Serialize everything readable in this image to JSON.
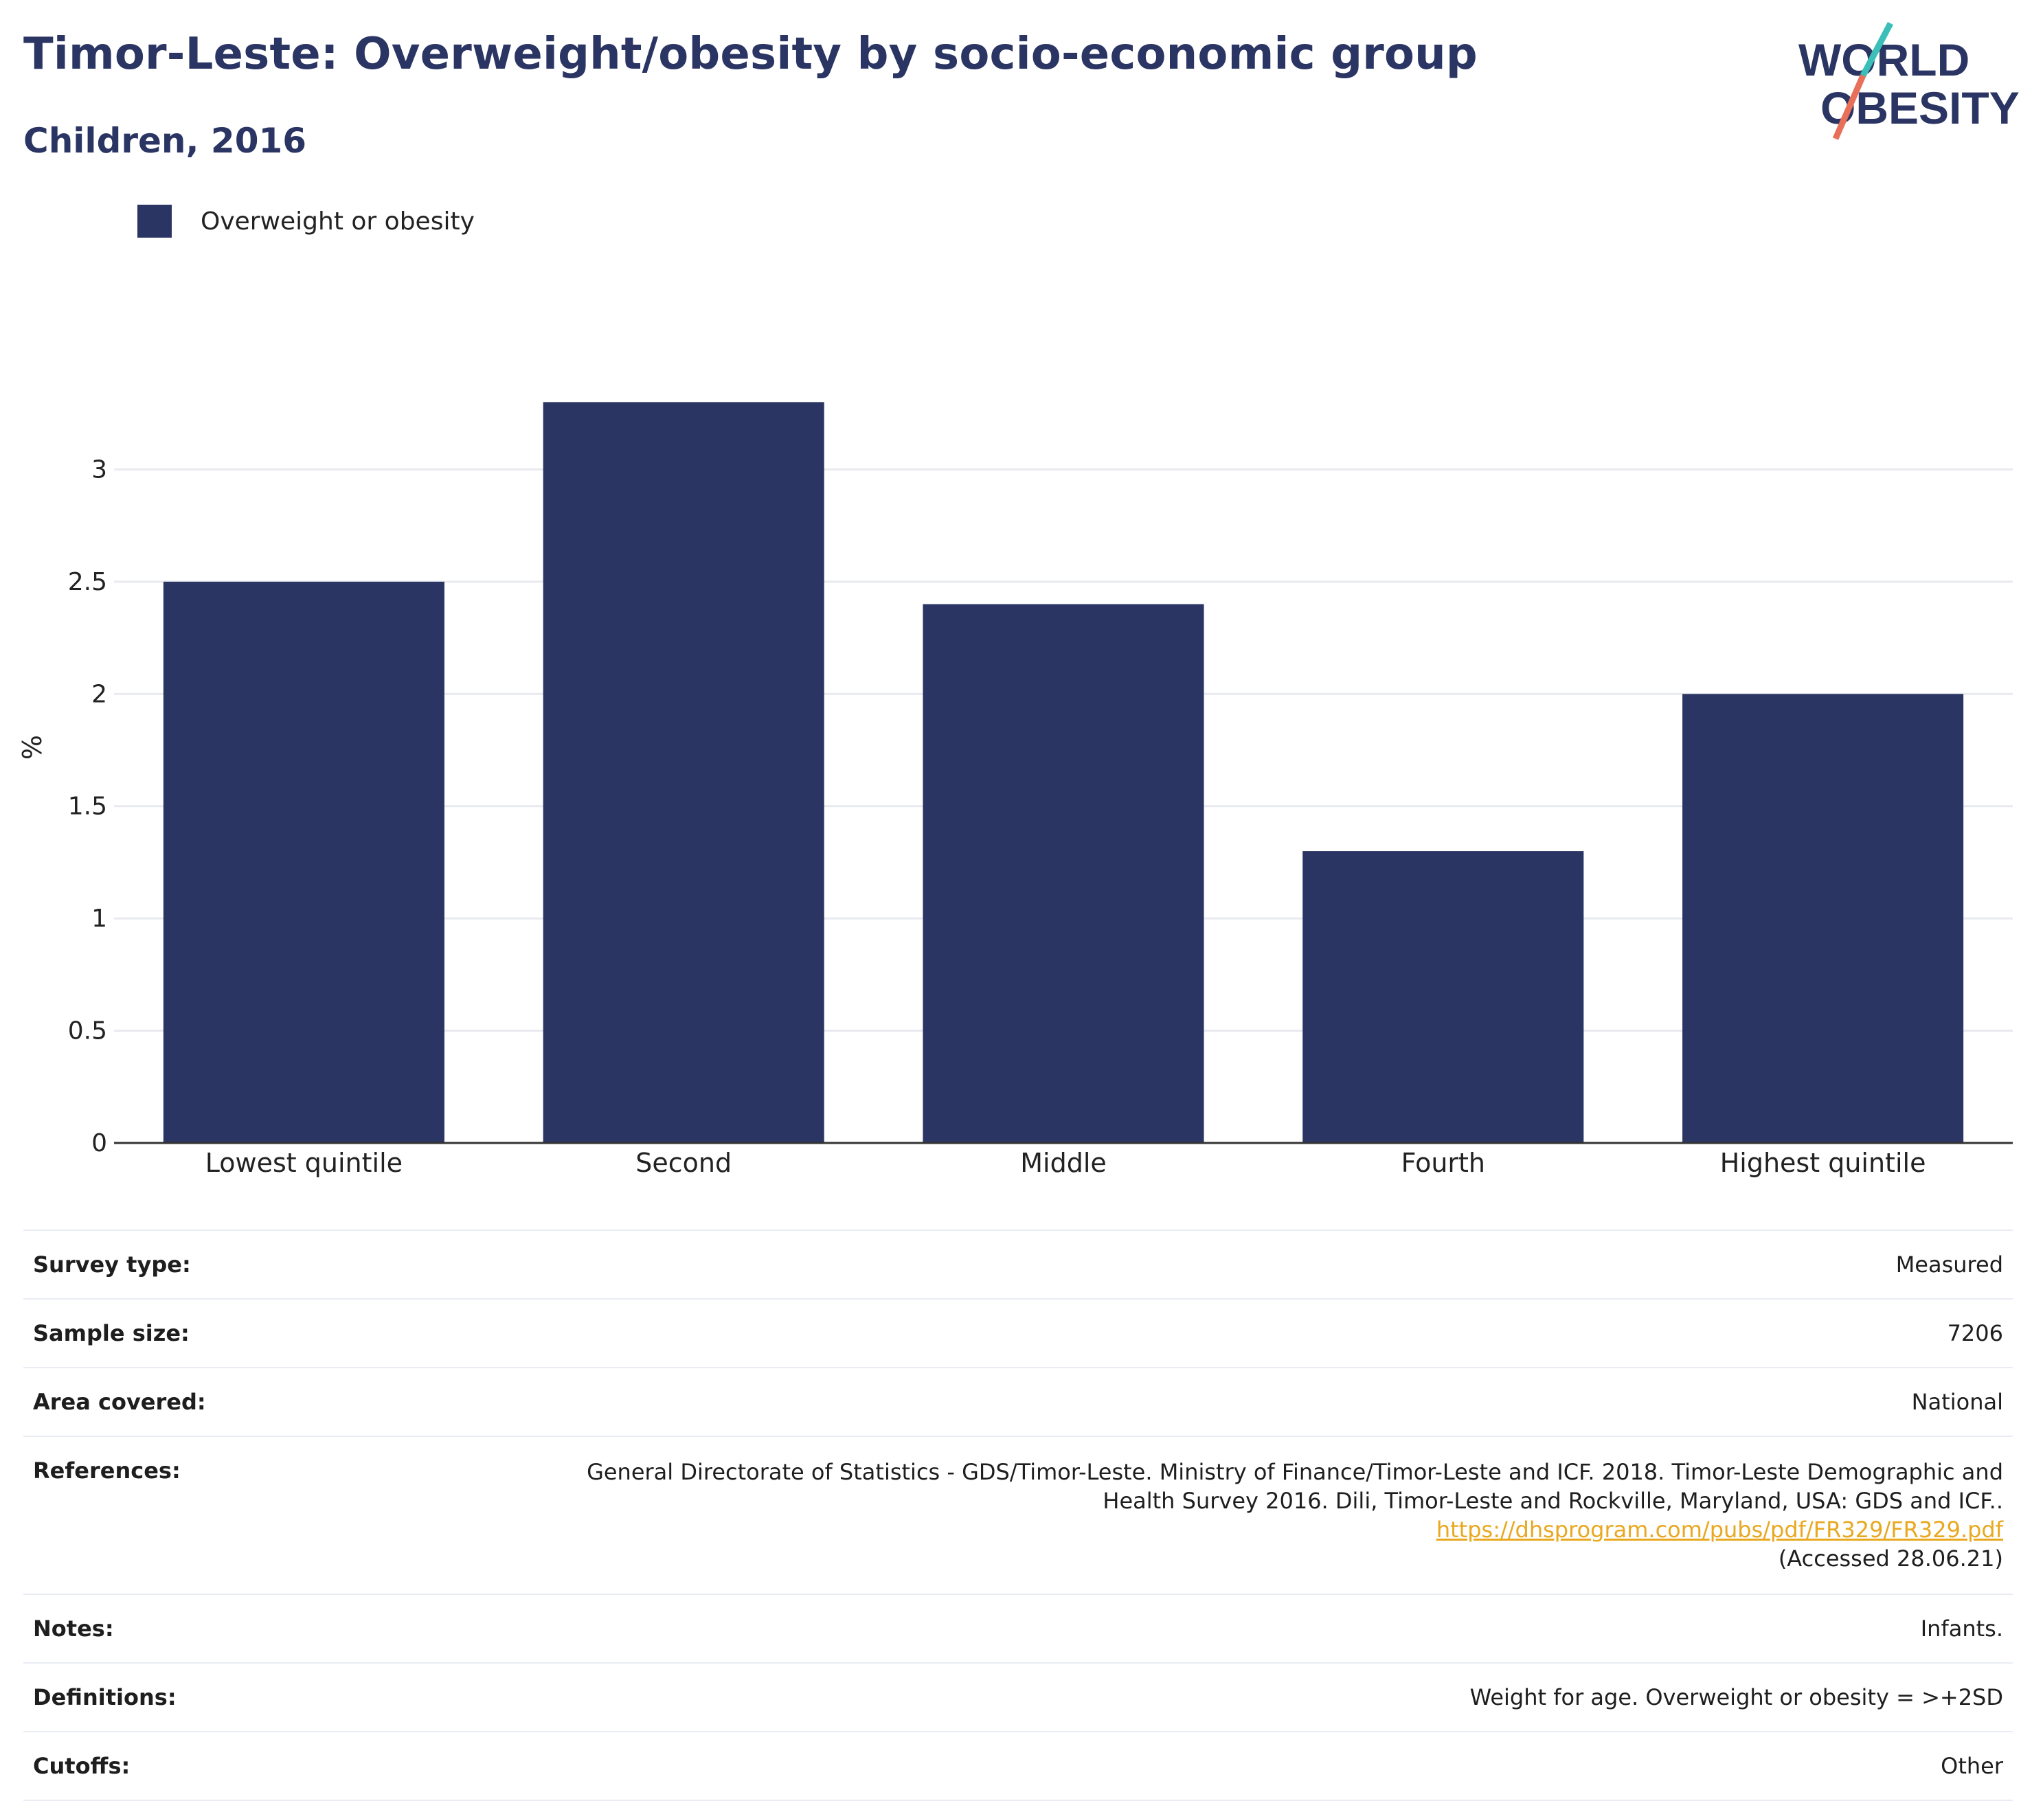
{
  "header": {
    "title": "Timor-Leste: Overweight/obesity by socio-economic group",
    "subtitle": "Children, 2016"
  },
  "logo": {
    "line1": "WORLD",
    "line2": "OBESITY",
    "colors": {
      "text": "#2b3563",
      "slash_top": "#3bbfb8",
      "slash_bottom": "#e8705a"
    }
  },
  "chart_data": {
    "type": "bar",
    "categories": [
      "Lowest quintile",
      "Second",
      "Middle",
      "Fourth",
      "Highest quintile"
    ],
    "series": [
      {
        "name": "Overweight or obesity",
        "values": [
          2.5,
          3.3,
          2.4,
          1.3,
          2.0
        ],
        "color": "#2b3563"
      }
    ],
    "ylabel": "%",
    "xlabel": "",
    "ylim": [
      0,
      3.5
    ],
    "yticks": [
      0,
      0.5,
      1,
      1.5,
      2,
      2.5,
      3
    ],
    "ytick_labels": [
      "0",
      "0.5",
      "1",
      "1.5",
      "2",
      "2.5",
      "3"
    ],
    "grid": true,
    "legend_position": "top-left"
  },
  "meta": {
    "survey_type": {
      "label": "Survey type:",
      "value": "Measured"
    },
    "sample_size": {
      "label": "Sample size:",
      "value": "7206"
    },
    "area_covered": {
      "label": "Area covered:",
      "value": "National"
    },
    "references": {
      "label": "References:",
      "text_before": "General Directorate of Statistics - GDS/Timor-Leste. Ministry of Finance/Timor-Leste and ICF. 2018. Timor-Leste Demographic and Health Survey 2016. Dili, Timor-Leste and Rockville, Maryland, USA: GDS and ICF..",
      "link": "https://dhsprogram.com/pubs/pdf/FR329/FR329.pdf",
      "text_after": "(Accessed 28.06.21)"
    },
    "notes": {
      "label": "Notes:",
      "value": "Infants."
    },
    "definitions": {
      "label": "Definitions:",
      "value": "Weight for age. Overweight or obesity = >+2SD"
    },
    "cutoffs": {
      "label": "Cutoffs:",
      "value": "Other"
    }
  }
}
